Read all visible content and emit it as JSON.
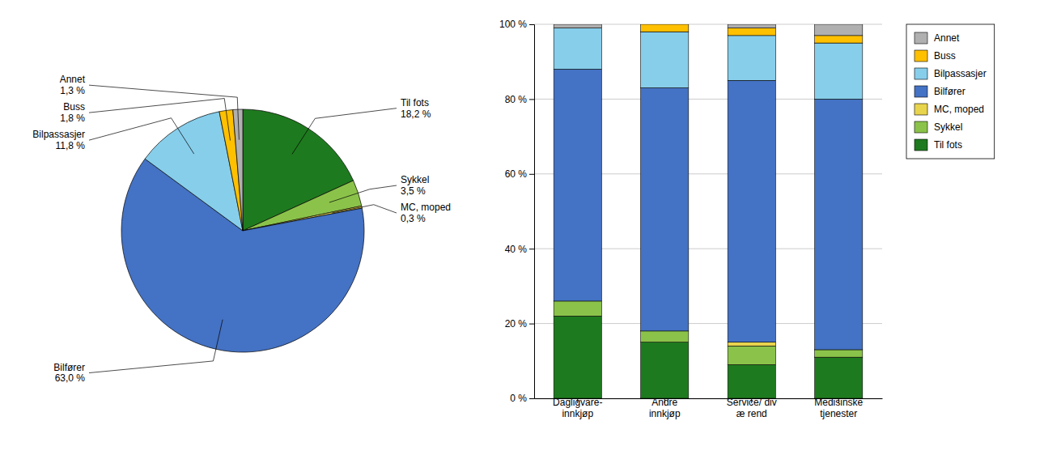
{
  "chart_data": [
    {
      "type": "pie",
      "categories": [
        "Til fots",
        "Sykkel",
        "MC, moped",
        "Bilfører",
        "Bilpassasjer",
        "Buss",
        "Annet"
      ],
      "values": [
        18.2,
        3.5,
        0.3,
        63.0,
        11.8,
        1.8,
        1.3
      ],
      "value_labels": [
        "18,2 %",
        "3,5 %",
        "0,3 %",
        "63,0 %",
        "11,8 %",
        "1,8 %",
        "1,3 %"
      ],
      "colors": [
        "#1e7a1e",
        "#8bc34a",
        "#e8d44d",
        "#4472c4",
        "#87ceeb",
        "#ffc000",
        "#b0b0b0"
      ],
      "data_labels": true
    },
    {
      "type": "bar",
      "stacked": true,
      "categories": [
        "Dagligvare-\ninnkjøp",
        "Andre\ninnkjøp",
        "Service/ div\næ rend",
        "Medisinske\ntjenester"
      ],
      "series": [
        {
          "name": "Til fots",
          "color": "#1e7a1e",
          "values": [
            22,
            15,
            9,
            11
          ]
        },
        {
          "name": "Sykkel",
          "color": "#8bc34a",
          "values": [
            4,
            3,
            5,
            2
          ]
        },
        {
          "name": "MC, moped",
          "color": "#e8d44d",
          "values": [
            0,
            0,
            1,
            0
          ]
        },
        {
          "name": "Bilfører",
          "color": "#4472c4",
          "values": [
            62,
            65,
            70,
            67
          ]
        },
        {
          "name": "Bilpassasjer",
          "color": "#87ceeb",
          "values": [
            11,
            15,
            12,
            15
          ]
        },
        {
          "name": "Buss",
          "color": "#ffc000",
          "values": [
            0,
            2,
            2,
            2
          ]
        },
        {
          "name": "Annet",
          "color": "#b0b0b0",
          "values": [
            1,
            0,
            1,
            3
          ]
        }
      ],
      "ylim": [
        0,
        100
      ],
      "yticks": [
        {
          "value": 0,
          "label": "0 %"
        },
        {
          "value": 20,
          "label": "20 %"
        },
        {
          "value": 40,
          "label": "40 %"
        },
        {
          "value": 60,
          "label": "60 %"
        },
        {
          "value": 80,
          "label": "80 %"
        },
        {
          "value": 100,
          "label": "100 %"
        }
      ],
      "grid": true,
      "legend": "right"
    }
  ]
}
